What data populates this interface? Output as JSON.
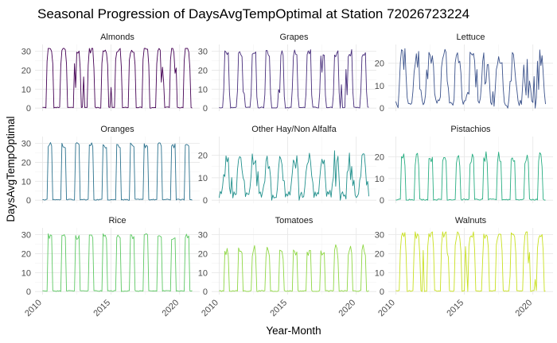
{
  "chart_data": {
    "type": "line",
    "title": "Seasonal Progression of DaysAvgTempOptimal at Station 72026723224",
    "xlabel": "Year-Month",
    "ylabel": "DaysAvgTempOptimal",
    "x_range": [
      "2010-01",
      "2020-12"
    ],
    "x_ticks": [
      {
        "label": "2010",
        "x": 2010
      },
      {
        "label": "2015",
        "x": 2015
      },
      {
        "label": "2020",
        "x": 2020
      }
    ],
    "legend": "none",
    "facets": [
      {
        "label": "Almonds",
        "color": "#440154",
        "ylim": [
          0,
          32
        ],
        "yticks": [
          "0",
          "10",
          "20",
          "30"
        ],
        "peak": 31,
        "base": 0,
        "width": 0.5,
        "jitter": 2,
        "sharp": 0.25,
        "spikes": 3
      },
      {
        "label": "Grapes",
        "color": "#472D7B",
        "ylim": [
          0,
          32
        ],
        "yticks": [
          "0",
          "10",
          "20",
          "30"
        ],
        "peak": 29,
        "base": 0,
        "width": 0.42,
        "jitter": 2,
        "sharp": 0.3,
        "spikes": 1
      },
      {
        "label": "Lettuce",
        "color": "#3B528B",
        "ylim": [
          0,
          27
        ],
        "yticks": [
          "0",
          "10",
          "20"
        ],
        "peak": 22,
        "base": 1,
        "width": 0.85,
        "jitter": 5,
        "sharp": 0.7,
        "spikes": 4
      },
      {
        "label": "Oranges",
        "color": "#2C728E",
        "ylim": [
          0,
          32
        ],
        "yticks": [
          "0",
          "10",
          "20",
          "30"
        ],
        "peak": 29,
        "base": 0,
        "width": 0.32,
        "jitter": 1.5,
        "sharp": 0.3,
        "spikes": 0
      },
      {
        "label": "Other Hay/Non Alfalfa",
        "color": "#21908C",
        "ylim": [
          0,
          27
        ],
        "yticks": [
          "0",
          "10",
          "20"
        ],
        "peak": 18,
        "base": 1,
        "width": 0.75,
        "jitter": 5,
        "sharp": 0.75,
        "spikes": 4
      },
      {
        "label": "Pistachios",
        "color": "#27AD81",
        "ylim": [
          0,
          28
        ],
        "yticks": [
          "0",
          "10",
          "20"
        ],
        "peak": 20,
        "base": 0,
        "width": 0.3,
        "jitter": 2.5,
        "sharp": 0.4,
        "spikes": 0
      },
      {
        "label": "Rice",
        "color": "#5DC863",
        "ylim": [
          0,
          32
        ],
        "yticks": [
          "0",
          "10",
          "20",
          "30"
        ],
        "peak": 29,
        "base": 0,
        "width": 0.33,
        "jitter": 1.5,
        "sharp": 0.3,
        "spikes": 0
      },
      {
        "label": "Tomatoes",
        "color": "#8FD744",
        "ylim": [
          0,
          32
        ],
        "yticks": [
          "0",
          "10",
          "20",
          "30"
        ],
        "peak": 22,
        "base": 0,
        "width": 0.3,
        "jitter": 3,
        "sharp": 0.4,
        "spikes": 0
      },
      {
        "label": "Walnuts",
        "color": "#C8E020",
        "ylim": [
          0,
          32
        ],
        "yticks": [
          "0",
          "10",
          "20",
          "30"
        ],
        "peak": 30,
        "base": 0,
        "width": 0.5,
        "jitter": 2,
        "sharp": 0.25,
        "spikes": 3
      }
    ]
  }
}
